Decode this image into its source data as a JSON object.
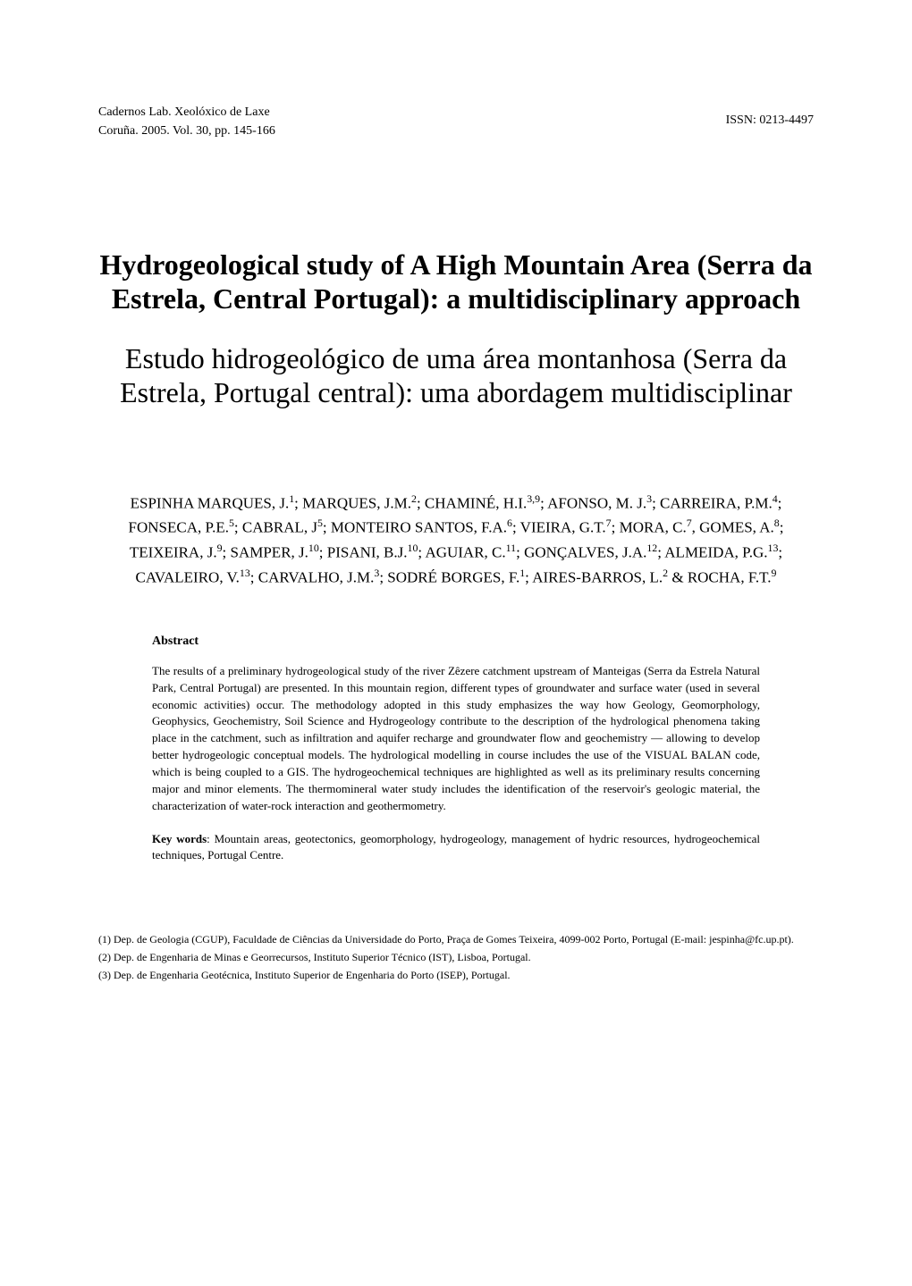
{
  "header": {
    "journal_line1": "Cadernos Lab. Xeolóxico de Laxe",
    "journal_line2": "Coruña. 2005. Vol. 30, pp. 145-166",
    "issn": "ISSN: 0213-4497"
  },
  "title": {
    "english": "Hydrogeological study of A High Mountain Area (Serra da Estrela, Central Portugal): a multidisciplinary approach",
    "portuguese": "Estudo hidrogeológico de uma área montanhosa (Serra da Estrela, Portugal central): uma abordagem multidisciplinar"
  },
  "authors_html": "ESPINHA MARQUES, J.<sup>1</sup>; MARQUES, J.M.<sup>2</sup>; CHAMINÉ, H.I.<sup>3,9</sup>; AFONSO, M. J.<sup>3</sup>; CARREIRA, P.M.<sup>4</sup>; FONSECA, P.E.<sup>5</sup>; CABRAL, J<sup>5</sup>; MONTEIRO SANTOS, F.A.<sup>6</sup>; VIEIRA, G.T.<sup>7</sup>; MORA, C.<sup>7</sup>, GOMES, A.<sup>8</sup>; TEIXEIRA, J.<sup>9</sup>; SAMPER, J.<sup>10</sup>; PISANI, B.J.<sup>10</sup>; AGUIAR, C.<sup>11</sup>; GONÇALVES, J.A.<sup>12</sup>; ALMEIDA, P.G.<sup>13</sup>; CAVALEIRO, V.<sup>13</sup>; CARVALHO, J.M.<sup>3</sup>; SODRÉ BORGES, F.<sup>1</sup>; AIRES-BARROS, L.<sup>2</sup> & ROCHA, F.T.<sup>9</sup>",
  "abstract": {
    "heading": "Abstract",
    "text": "The results of a preliminary hydrogeological study of the river Zêzere catchment upstream of Manteigas (Serra da Estrela Natural Park, Central Portugal) are presented. In this mountain region, different types of groundwater and surface water (used in several economic activities) occur. The methodology adopted in this study emphasizes the way how Geology, Geomorphology, Geophysics, Geochemistry, Soil Science and Hydrogeology contribute to the description of the hydrological phenomena taking place in the catchment, such as infiltration and aquifer recharge and groundwater flow and geochemistry — allowing to develop better hydrogeologic conceptual models. The hydrological modelling in course includes the use of the VISUAL BALAN code, which is being coupled to a GIS. The hydrogeochemical techniques are highlighted as well as its preliminary results concerning major and minor elements. The thermomineral water study includes the identification of the reservoir's geologic material, the characterization of water-rock interaction and geothermometry.",
    "keywords_label": "Key words",
    "keywords_text": ": Mountain areas, geotectonics, geomorphology, hydrogeology, management of hydric resources, hydrogeochemical techniques, Portugal Centre."
  },
  "affiliations": [
    "(1) Dep. de Geologia (CGUP), Faculdade de Ciências da Universidade do Porto, Praça de Gomes Teixeira, 4099-002 Porto, Portugal (E-mail: jespinha@fc.up.pt).",
    "(2) Dep. de Engenharia de Minas e Georrecursos, Instituto Superior Técnico (IST), Lisboa, Portugal.",
    "(3) Dep. de Engenharia Geotécnica, Instituto Superior de Engenharia do Porto (ISEP), Portugal."
  ]
}
